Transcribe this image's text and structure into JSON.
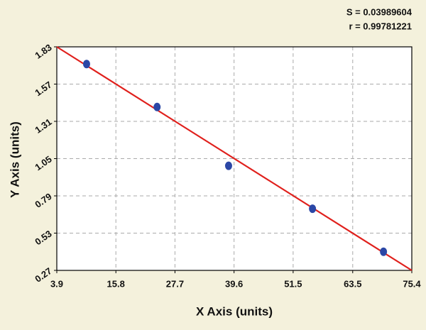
{
  "chart_data": {
    "type": "scatter",
    "annotations": [
      "S = 0.03989604",
      "r = 0.99781221"
    ],
    "x_label": "X Axis (units)",
    "y_label": "Y Axis (units)",
    "points": {
      "x": [
        9.9,
        24.1,
        38.5,
        55.4,
        69.7
      ],
      "y": [
        1.71,
        1.41,
        1.0,
        0.7,
        0.4
      ],
      "color": "#2b47a6"
    },
    "fit_line": {
      "x": [
        3.9,
        75.4
      ],
      "y": [
        1.83,
        0.27
      ],
      "color": "#e0201c"
    },
    "xlim": [
      3.9,
      75.4
    ],
    "ylim": [
      0.27,
      1.83
    ],
    "xticks": [
      3.9,
      15.8,
      27.7,
      39.6,
      51.5,
      63.5,
      75.4
    ],
    "yticks": [
      0.27,
      0.53,
      0.79,
      1.05,
      1.31,
      1.57,
      1.83
    ],
    "grid": true
  }
}
